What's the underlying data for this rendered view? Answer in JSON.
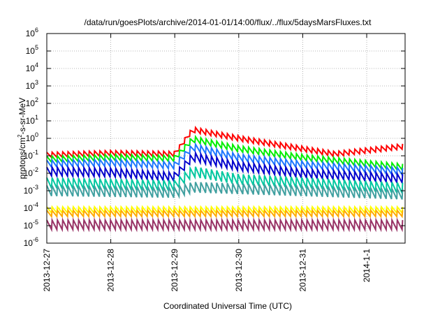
{
  "chart_data": {
    "type": "line",
    "title": "/data/run/goesPlots/archive/2014-01-01/14:00/flux/../flux/5daysMarsFluxes.txt",
    "xlabel": "Coordinated Universal Time (UTC)",
    "ylabel_parts": [
      "protons/cm",
      "2",
      "-s-sr-MeV"
    ],
    "y_scale": "log",
    "y_tick_exponents": [
      -6,
      -5,
      -4,
      -3,
      -2,
      -1,
      0,
      1,
      2,
      3,
      4,
      5,
      6
    ],
    "y_tick_base": "10",
    "x_range_days": [
      0,
      5.6
    ],
    "x_ticks": [
      {
        "label": "2013-12-27",
        "day": 0
      },
      {
        "label": "2013-12-28",
        "day": 1
      },
      {
        "label": "2013-12-29",
        "day": 2
      },
      {
        "label": "2013-12-30",
        "day": 3
      },
      {
        "label": "2013-12-31",
        "day": 4
      },
      {
        "label": "2014-1-1",
        "day": 5
      }
    ],
    "grid": true,
    "series": [
      {
        "color": "#ff0000",
        "keys": [
          [
            0,
            -0.95
          ],
          [
            1.0,
            -0.85
          ],
          [
            2.0,
            -0.9
          ],
          [
            2.28,
            0.5
          ],
          [
            3.0,
            0.0
          ],
          [
            4.0,
            -0.6
          ],
          [
            4.5,
            -0.9
          ],
          [
            5.6,
            -0.45
          ]
        ],
        "period": 0.083,
        "amp": 0.3
      },
      {
        "color": "#00ee00",
        "keys": [
          [
            0,
            -1.2
          ],
          [
            1.0,
            -1.1
          ],
          [
            2.0,
            -1.15
          ],
          [
            2.28,
            -0.05
          ],
          [
            3.0,
            -0.6
          ],
          [
            4.0,
            -1.1
          ],
          [
            5.6,
            -1.65
          ]
        ],
        "period": 0.083,
        "amp": 0.35
      },
      {
        "color": "#1e78ff",
        "keys": [
          [
            0,
            -1.45
          ],
          [
            1.0,
            -1.4
          ],
          [
            2.0,
            -1.55
          ],
          [
            2.28,
            -0.5
          ],
          [
            3.0,
            -1.1
          ],
          [
            4.0,
            -1.5
          ],
          [
            5.6,
            -1.9
          ]
        ],
        "period": 0.083,
        "amp": 0.4
      },
      {
        "color": "#0000cc",
        "keys": [
          [
            0,
            -1.9
          ],
          [
            1.0,
            -1.95
          ],
          [
            2.0,
            -2.2
          ],
          [
            2.28,
            -1.05
          ],
          [
            3.0,
            -1.6
          ],
          [
            4.0,
            -2.0
          ],
          [
            5.6,
            -2.3
          ]
        ],
        "period": 0.083,
        "amp": 0.5
      },
      {
        "color": "#00c8a0",
        "keys": [
          [
            0,
            -2.55
          ],
          [
            2.0,
            -2.7
          ],
          [
            2.28,
            -1.9
          ],
          [
            3.0,
            -2.35
          ],
          [
            5.6,
            -2.85
          ]
        ],
        "period": 0.083,
        "amp": 0.6
      },
      {
        "color": "#40a0a0",
        "keys": [
          [
            0,
            -3.0
          ],
          [
            2.0,
            -3.1
          ],
          [
            2.28,
            -2.8
          ],
          [
            5.6,
            -3.2
          ]
        ],
        "period": 0.083,
        "amp": 0.6
      },
      {
        "color": "#ffff00",
        "keys": [
          [
            0,
            -4.1
          ],
          [
            5.6,
            -4.1
          ]
        ],
        "period": 0.083,
        "amp": 0.35
      },
      {
        "color": "#ffaa00",
        "keys": [
          [
            0,
            -4.3
          ],
          [
            5.6,
            -4.3
          ]
        ],
        "period": 0.083,
        "amp": 0.35
      },
      {
        "color": "#993366",
        "keys": [
          [
            0,
            -4.95
          ],
          [
            5.6,
            -4.95
          ]
        ],
        "period": 0.083,
        "amp": 0.55
      }
    ]
  }
}
